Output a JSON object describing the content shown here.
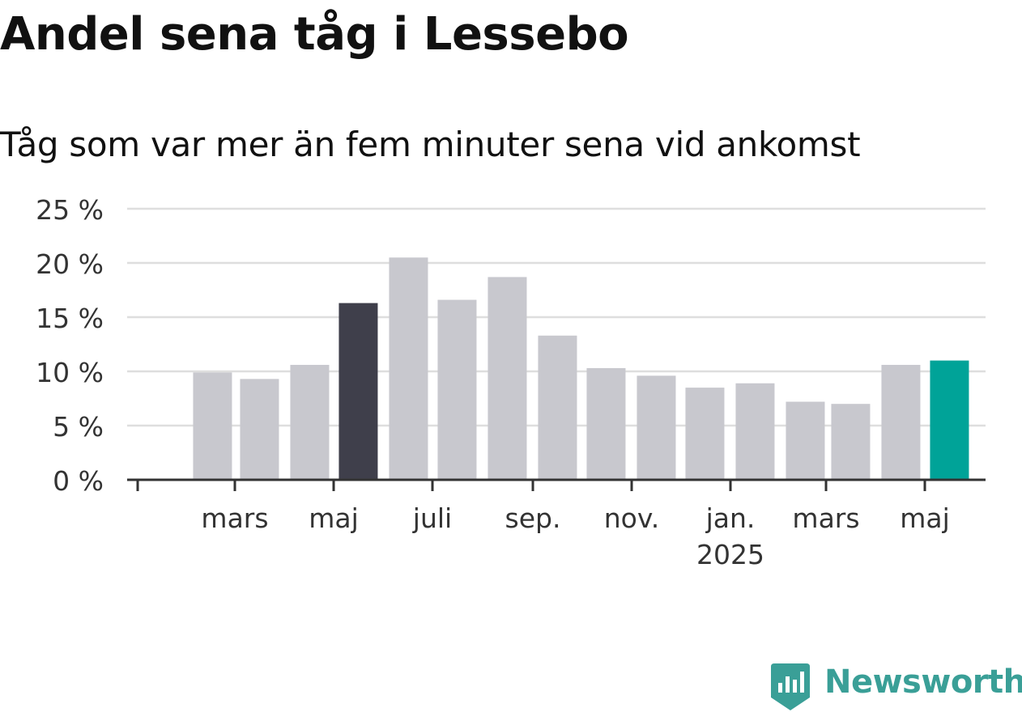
{
  "chart_data": {
    "type": "bar",
    "title": "Andel sena tåg i Lessebo",
    "subtitle": "Tåg som var mer än fem minuter sena vid ankomst",
    "y_ticks": [
      "0 %",
      "5 %",
      "10 %",
      "15 %",
      "20 %",
      "25 %"
    ],
    "y_tick_values": [
      0,
      5,
      10,
      15,
      20,
      25
    ],
    "ylim": [
      0,
      25
    ],
    "x_ticks": [
      {
        "label": "mars",
        "label2": ""
      },
      {
        "label": "maj",
        "label2": ""
      },
      {
        "label": "juli",
        "label2": ""
      },
      {
        "label": "sep.",
        "label2": ""
      },
      {
        "label": "nov.",
        "label2": ""
      },
      {
        "label": "jan.",
        "label2": "2025"
      },
      {
        "label": "mars",
        "label2": ""
      },
      {
        "label": "maj",
        "label2": ""
      }
    ],
    "x_tick_dates": [
      "2024-03-01",
      "2024-05-01",
      "2024-07-01",
      "2024-09-01",
      "2024-11-01",
      "2025-01-01",
      "2025-03-01",
      "2025-05-01"
    ],
    "first_axis_tick_date": "2024-01-01",
    "bars": [
      {
        "date": "2024-02",
        "value": 9.9
      },
      {
        "date": "2024-03",
        "value": 9.3
      },
      {
        "date": "2024-04",
        "value": 10.6
      },
      {
        "date": "2024-05",
        "value": 16.3,
        "highlight": "previous-year"
      },
      {
        "date": "2024-06",
        "value": 20.5
      },
      {
        "date": "2024-07",
        "value": 16.6
      },
      {
        "date": "2024-08",
        "value": 18.7
      },
      {
        "date": "2024-09",
        "value": 13.3
      },
      {
        "date": "2024-10",
        "value": 10.3
      },
      {
        "date": "2024-11",
        "value": 9.6
      },
      {
        "date": "2024-12",
        "value": 8.5
      },
      {
        "date": "2025-01",
        "value": 8.9
      },
      {
        "date": "2025-02",
        "value": 7.2
      },
      {
        "date": "2025-03",
        "value": 7.0
      },
      {
        "date": "2025-04",
        "value": 10.6
      },
      {
        "date": "2025-05",
        "value": 11.0,
        "highlight": "current"
      }
    ],
    "colors": {
      "bar": "#c8c8ce",
      "previous": "#3f3f4b",
      "current": "#00a398",
      "grid": "#dedede",
      "axis": "#333333",
      "text": "#333333"
    },
    "grid": true,
    "legend": "none"
  },
  "brand": {
    "name": "Newsworthy",
    "color": "#3a9f97",
    "icon": "newsworthy-logo-icon"
  }
}
